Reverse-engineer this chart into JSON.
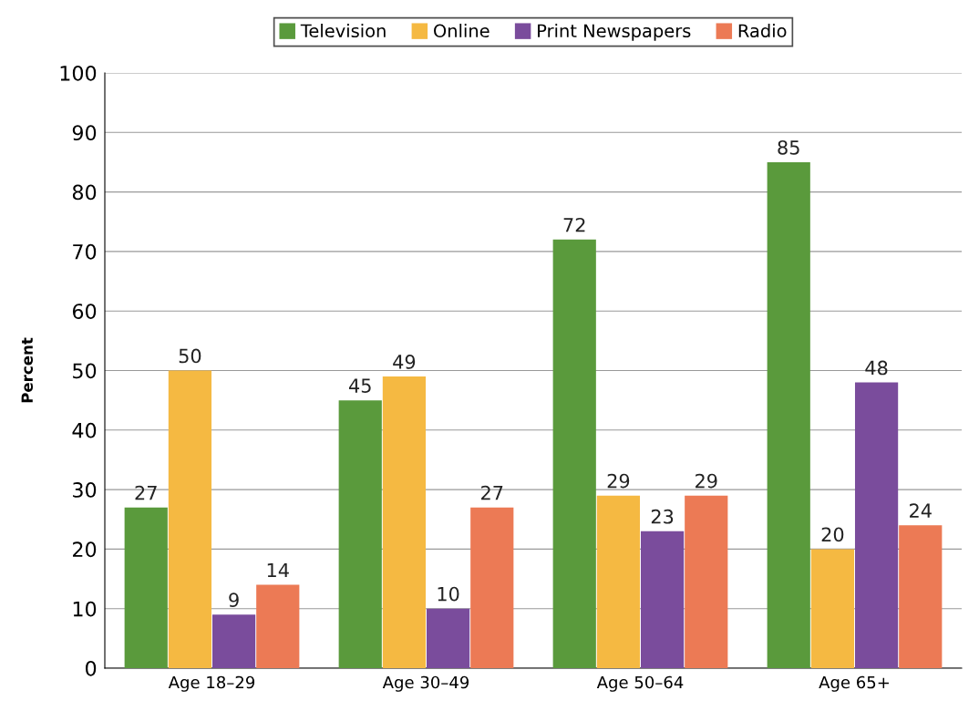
{
  "chart_data": {
    "type": "bar",
    "ylabel": "Percent",
    "categories": [
      "Age 18–29",
      "Age 30–49",
      "Age 50–64",
      "Age 65+"
    ],
    "series": [
      {
        "name": "Television",
        "color": "#5a9a3c",
        "values": [
          27,
          45,
          72,
          85
        ]
      },
      {
        "name": "Online",
        "color": "#f5b942",
        "values": [
          50,
          49,
          29,
          20
        ]
      },
      {
        "name": "Print Newspapers",
        "color": "#7a4c9c",
        "values": [
          9,
          10,
          23,
          48
        ]
      },
      {
        "name": "Radio",
        "color": "#ec7a55",
        "values": [
          14,
          27,
          29,
          24
        ]
      }
    ],
    "ylim": [
      0,
      100
    ],
    "yticks": [
      0,
      10,
      20,
      30,
      40,
      50,
      60,
      70,
      80,
      90,
      100
    ],
    "grid": "y",
    "legend": "top",
    "data_labels": true
  }
}
